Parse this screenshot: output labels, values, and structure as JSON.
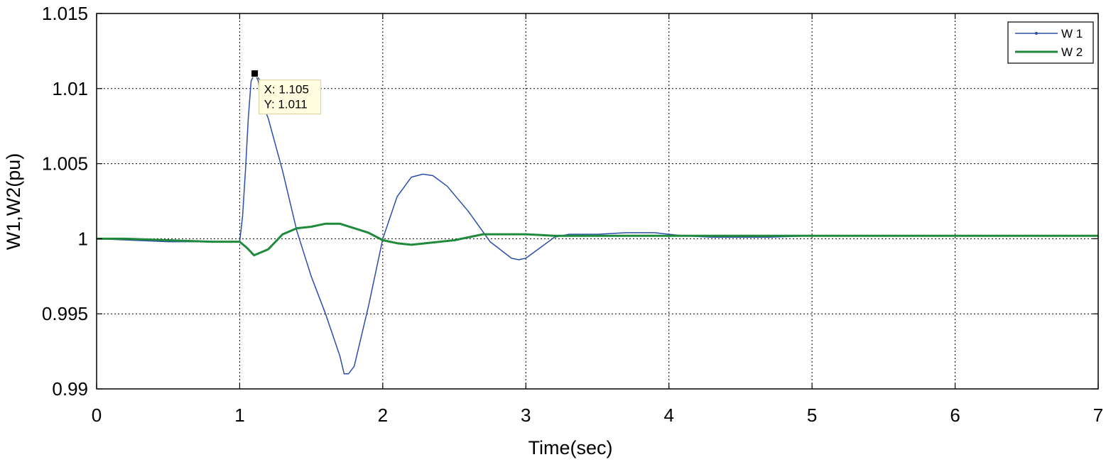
{
  "chart_data": {
    "type": "line",
    "title": "",
    "xlabel": "Time(sec)",
    "ylabel": "W1,W2(pu)",
    "xlim": [
      0,
      7
    ],
    "ylim": [
      0.99,
      1.015
    ],
    "xticks": [
      0,
      1,
      2,
      3,
      4,
      5,
      6,
      7
    ],
    "xtick_labels": [
      "0",
      "1",
      "2",
      "3",
      "4",
      "5",
      "6",
      "7"
    ],
    "yticks": [
      0.99,
      0.995,
      1,
      1.005,
      1.01,
      1.015
    ],
    "ytick_labels": [
      "0.99",
      "0.995",
      "1",
      "1.005",
      "1.01",
      "1.015"
    ],
    "grid": true,
    "legend_position": "top-right",
    "series": [
      {
        "name": "W 1",
        "color": "#2b4ea8",
        "x": [
          0,
          0.5,
          1.0,
          1.02,
          1.04,
          1.06,
          1.08,
          1.105,
          1.13,
          1.16,
          1.2,
          1.3,
          1.4,
          1.5,
          1.6,
          1.7,
          1.73,
          1.76,
          1.8,
          1.9,
          2.0,
          2.1,
          2.2,
          2.28,
          2.35,
          2.45,
          2.6,
          2.75,
          2.9,
          2.95,
          3.0,
          3.1,
          3.2,
          3.3,
          3.5,
          3.7,
          3.8,
          3.9,
          4.0,
          4.1,
          4.3,
          4.5,
          4.7,
          5.0,
          5.5,
          5.7,
          6.0,
          7.0
        ],
        "y": [
          1.0,
          0.9998,
          0.9998,
          1.0015,
          1.0045,
          1.008,
          1.0105,
          1.011,
          1.0105,
          1.009,
          1.008,
          1.0045,
          1.0005,
          0.9975,
          0.995,
          0.9922,
          0.991,
          0.991,
          0.9915,
          0.9955,
          1.0,
          1.0028,
          1.0041,
          1.0043,
          1.0042,
          1.0035,
          1.0018,
          0.9998,
          0.9987,
          0.9986,
          0.9987,
          0.9994,
          1.0001,
          1.0003,
          1.0003,
          1.0004,
          1.0004,
          1.0004,
          1.0003,
          1.0002,
          1.0001,
          1.0001,
          1.0001,
          1.0002,
          1.0002,
          1.0002,
          1.0002,
          1.0002
        ]
      },
      {
        "name": "W 2",
        "color": "#1f8a3c",
        "x": [
          0,
          0.2,
          0.5,
          0.8,
          1.0,
          1.05,
          1.1,
          1.2,
          1.3,
          1.4,
          1.5,
          1.6,
          1.7,
          1.8,
          1.9,
          2.0,
          2.1,
          2.2,
          2.3,
          2.5,
          2.7,
          3.0,
          3.2,
          3.5,
          4.0,
          4.5,
          5.0,
          5.5,
          6.0,
          7.0
        ],
        "y": [
          1.0,
          1.0,
          0.9999,
          0.9998,
          0.9998,
          0.9994,
          0.9989,
          0.9993,
          1.0003,
          1.0007,
          1.0008,
          1.001,
          1.001,
          1.0007,
          1.0004,
          0.9999,
          0.9997,
          0.9996,
          0.9997,
          0.9999,
          1.0003,
          1.0003,
          1.0002,
          1.0002,
          1.0002,
          1.0002,
          1.0002,
          1.0002,
          1.0002,
          1.0002
        ]
      }
    ],
    "annotations": [
      {
        "type": "datatip",
        "x": 1.105,
        "y": 1.011,
        "line1": "X: 1.105",
        "line2": "Y: 1.011"
      }
    ]
  }
}
